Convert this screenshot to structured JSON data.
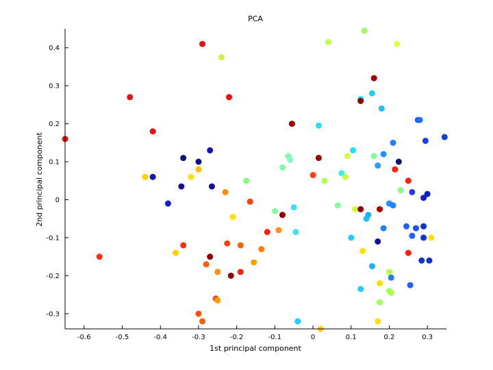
{
  "chart_data": {
    "type": "scatter",
    "title": "PCA",
    "xlabel": "1st principal component",
    "ylabel": "2nd principal component",
    "xlim": [
      -0.65,
      0.35
    ],
    "ylim": [
      -0.34,
      0.45
    ],
    "xticks": [
      -0.6,
      -0.5,
      -0.4,
      -0.3,
      -0.2,
      -0.1,
      0,
      0.1,
      0.2,
      0.3
    ],
    "xtick_labels": [
      "-0.6",
      "-0.5",
      "-0.4",
      "-0.3",
      "-0.2",
      "-0.1",
      "0",
      "0.1",
      "0.2",
      "0.3"
    ],
    "yticks": [
      -0.3,
      -0.2,
      -0.1,
      0,
      0.1,
      0.2,
      0.3,
      0.4
    ],
    "ytick_labels": [
      "-0.3",
      "-0.2",
      "-0.1",
      "0",
      "0.1",
      "0.2",
      "0.3",
      "0.4"
    ],
    "grid": false,
    "legend": "none",
    "points": [
      {
        "x": -0.65,
        "y": 0.16,
        "color": "#e81010"
      },
      {
        "x": -0.56,
        "y": -0.15,
        "color": "#ff3010"
      },
      {
        "x": -0.48,
        "y": 0.27,
        "color": "#e81010"
      },
      {
        "x": -0.42,
        "y": 0.18,
        "color": "#e81010"
      },
      {
        "x": -0.44,
        "y": 0.06,
        "color": "#ffd000"
      },
      {
        "x": -0.42,
        "y": 0.06,
        "color": "#1010c0"
      },
      {
        "x": -0.38,
        "y": -0.01,
        "color": "#1020d0"
      },
      {
        "x": -0.36,
        "y": -0.14,
        "color": "#ffd000"
      },
      {
        "x": -0.34,
        "y": 0.11,
        "color": "#101080"
      },
      {
        "x": -0.345,
        "y": 0.035,
        "color": "#101090"
      },
      {
        "x": -0.34,
        "y": -0.12,
        "color": "#ff3010"
      },
      {
        "x": -0.32,
        "y": 0.06,
        "color": "#ffe000"
      },
      {
        "x": -0.3,
        "y": 0.1,
        "color": "#101080"
      },
      {
        "x": -0.3,
        "y": 0.08,
        "color": "#ffc000"
      },
      {
        "x": -0.29,
        "y": 0.41,
        "color": "#e81010"
      },
      {
        "x": -0.28,
        "y": -0.17,
        "color": "#ff6000"
      },
      {
        "x": -0.27,
        "y": 0.13,
        "color": "#1010c0"
      },
      {
        "x": -0.265,
        "y": 0.035,
        "color": "#101090"
      },
      {
        "x": -0.27,
        "y": -0.15,
        "color": "#900000"
      },
      {
        "x": -0.255,
        "y": -0.26,
        "color": "#ff5010"
      },
      {
        "x": -0.25,
        "y": -0.265,
        "color": "#ffa000"
      },
      {
        "x": -0.25,
        "y": -0.19,
        "color": "#ff9010"
      },
      {
        "x": -0.3,
        "y": -0.3,
        "color": "#ff5010"
      },
      {
        "x": -0.29,
        "y": -0.32,
        "color": "#ff6000"
      },
      {
        "x": -0.24,
        "y": 0.375,
        "color": "#d8f040"
      },
      {
        "x": -0.23,
        "y": 0.02,
        "color": "#ff9010"
      },
      {
        "x": -0.22,
        "y": 0.27,
        "color": "#e81010"
      },
      {
        "x": -0.225,
        "y": -0.115,
        "color": "#ff4010"
      },
      {
        "x": -0.21,
        "y": -0.045,
        "color": "#ffe000"
      },
      {
        "x": -0.215,
        "y": -0.2,
        "color": "#900000"
      },
      {
        "x": -0.19,
        "y": -0.12,
        "color": "#ff6000"
      },
      {
        "x": -0.19,
        "y": -0.19,
        "color": "#ff2010"
      },
      {
        "x": -0.175,
        "y": 0.05,
        "color": "#80ff80"
      },
      {
        "x": -0.165,
        "y": -0.005,
        "color": "#ff4010"
      },
      {
        "x": -0.155,
        "y": -0.165,
        "color": "#ffa000"
      },
      {
        "x": -0.135,
        "y": -0.13,
        "color": "#ff8000"
      },
      {
        "x": -0.12,
        "y": -0.085,
        "color": "#ff2010"
      },
      {
        "x": -0.1,
        "y": -0.03,
        "color": "#80ffa0"
      },
      {
        "x": -0.09,
        "y": -0.08,
        "color": "#ff9010"
      },
      {
        "x": -0.08,
        "y": 0.085,
        "color": "#80ffa0"
      },
      {
        "x": -0.08,
        "y": -0.04,
        "color": "#900000"
      },
      {
        "x": -0.065,
        "y": 0.115,
        "color": "#80ffb0"
      },
      {
        "x": -0.06,
        "y": 0.105,
        "color": "#80ffc0"
      },
      {
        "x": -0.055,
        "y": 0.2,
        "color": "#a00000"
      },
      {
        "x": -0.05,
        "y": -0.02,
        "color": "#40e0f0"
      },
      {
        "x": -0.045,
        "y": -0.085,
        "color": "#40e0f0"
      },
      {
        "x": -0.04,
        "y": -0.32,
        "color": "#20d0ff"
      },
      {
        "x": 0.0,
        "y": 0.065,
        "color": "#ff4010"
      },
      {
        "x": 0.015,
        "y": 0.195,
        "color": "#20e0ff"
      },
      {
        "x": 0.015,
        "y": 0.11,
        "color": "#a00000"
      },
      {
        "x": 0.02,
        "y": -0.34,
        "color": "#ffd000"
      },
      {
        "x": 0.03,
        "y": 0.05,
        "color": "#b0ff50"
      },
      {
        "x": 0.04,
        "y": 0.415,
        "color": "#c0ff50"
      },
      {
        "x": 0.065,
        "y": -0.015,
        "color": "#80ffa0"
      },
      {
        "x": 0.075,
        "y": 0.07,
        "color": "#40f0e0"
      },
      {
        "x": 0.085,
        "y": 0.06,
        "color": "#c0ff40"
      },
      {
        "x": 0.09,
        "y": 0.115,
        "color": "#d0ff40"
      },
      {
        "x": 0.1,
        "y": -0.1,
        "color": "#20d0ff"
      },
      {
        "x": 0.105,
        "y": 0.13,
        "color": "#20e0ff"
      },
      {
        "x": 0.11,
        "y": -0.025,
        "color": "#d0ff30"
      },
      {
        "x": 0.125,
        "y": 0.265,
        "color": "#20e0ff"
      },
      {
        "x": 0.125,
        "y": 0.26,
        "color": "#900000"
      },
      {
        "x": 0.125,
        "y": -0.025,
        "color": "#900000"
      },
      {
        "x": 0.13,
        "y": -0.135,
        "color": "#ffe000"
      },
      {
        "x": 0.125,
        "y": -0.235,
        "color": "#20d0ff"
      },
      {
        "x": 0.135,
        "y": 0.445,
        "color": "#a0ff60"
      },
      {
        "x": 0.14,
        "y": -0.05,
        "color": "#20c0ff"
      },
      {
        "x": 0.145,
        "y": -0.04,
        "color": "#20b0ff"
      },
      {
        "x": 0.155,
        "y": 0.28,
        "color": "#20d0ff"
      },
      {
        "x": 0.16,
        "y": 0.32,
        "color": "#a00000"
      },
      {
        "x": 0.16,
        "y": 0.115,
        "color": "#80ffa0"
      },
      {
        "x": 0.155,
        "y": -0.175,
        "color": "#20b0ff"
      },
      {
        "x": 0.17,
        "y": 0.09,
        "color": "#20a0ff"
      },
      {
        "x": 0.17,
        "y": -0.11,
        "color": "#101090"
      },
      {
        "x": 0.17,
        "y": -0.32,
        "color": "#ffe000"
      },
      {
        "x": 0.175,
        "y": -0.025,
        "color": "#b00000"
      },
      {
        "x": 0.175,
        "y": -0.22,
        "color": "#ffe000"
      },
      {
        "x": 0.175,
        "y": -0.27,
        "color": "#a0ff60"
      },
      {
        "x": 0.18,
        "y": 0.24,
        "color": "#20c0ff"
      },
      {
        "x": 0.185,
        "y": 0.12,
        "color": "#2090ff"
      },
      {
        "x": 0.185,
        "y": -0.075,
        "color": "#2080ff"
      },
      {
        "x": 0.2,
        "y": -0.01,
        "color": "#2090ff"
      },
      {
        "x": 0.2,
        "y": -0.19,
        "color": "#b0ff50"
      },
      {
        "x": 0.2,
        "y": -0.24,
        "color": "#a0ff60"
      },
      {
        "x": 0.205,
        "y": -0.245,
        "color": "#b0ff50"
      },
      {
        "x": 0.205,
        "y": -0.205,
        "color": "#2080ff"
      },
      {
        "x": 0.21,
        "y": 0.15,
        "color": "#2080ff"
      },
      {
        "x": 0.21,
        "y": -0.015,
        "color": "#2080ff"
      },
      {
        "x": 0.215,
        "y": 0.08,
        "color": "#ff2010"
      },
      {
        "x": 0.22,
        "y": 0.41,
        "color": "#e0ff40"
      },
      {
        "x": 0.225,
        "y": 0.1,
        "color": "#101070"
      },
      {
        "x": 0.23,
        "y": 0.025,
        "color": "#80ff90"
      },
      {
        "x": 0.245,
        "y": -0.07,
        "color": "#2060ff"
      },
      {
        "x": 0.25,
        "y": 0.05,
        "color": "#ff2010"
      },
      {
        "x": 0.25,
        "y": -0.14,
        "color": "#ff2010"
      },
      {
        "x": 0.255,
        "y": -0.225,
        "color": "#2060ff"
      },
      {
        "x": 0.26,
        "y": 0.02,
        "color": "#2040e0"
      },
      {
        "x": 0.26,
        "y": -0.095,
        "color": "#2060ff"
      },
      {
        "x": 0.27,
        "y": -0.075,
        "color": "#2050f0"
      },
      {
        "x": 0.275,
        "y": 0.21,
        "color": "#2060ff"
      },
      {
        "x": 0.28,
        "y": 0.21,
        "color": "#2070ff"
      },
      {
        "x": 0.285,
        "y": -0.16,
        "color": "#1030d0"
      },
      {
        "x": 0.29,
        "y": 0.005,
        "color": "#1020c0"
      },
      {
        "x": 0.29,
        "y": -0.07,
        "color": "#1030d0"
      },
      {
        "x": 0.29,
        "y": -0.1,
        "color": "#1030e0"
      },
      {
        "x": 0.295,
        "y": 0.155,
        "color": "#2040e0"
      },
      {
        "x": 0.3,
        "y": 0.015,
        "color": "#1020c0"
      },
      {
        "x": 0.305,
        "y": -0.16,
        "color": "#1030d0"
      },
      {
        "x": 0.31,
        "y": -0.1,
        "color": "#ffe000"
      },
      {
        "x": 0.345,
        "y": 0.165,
        "color": "#1040e0"
      }
    ]
  }
}
